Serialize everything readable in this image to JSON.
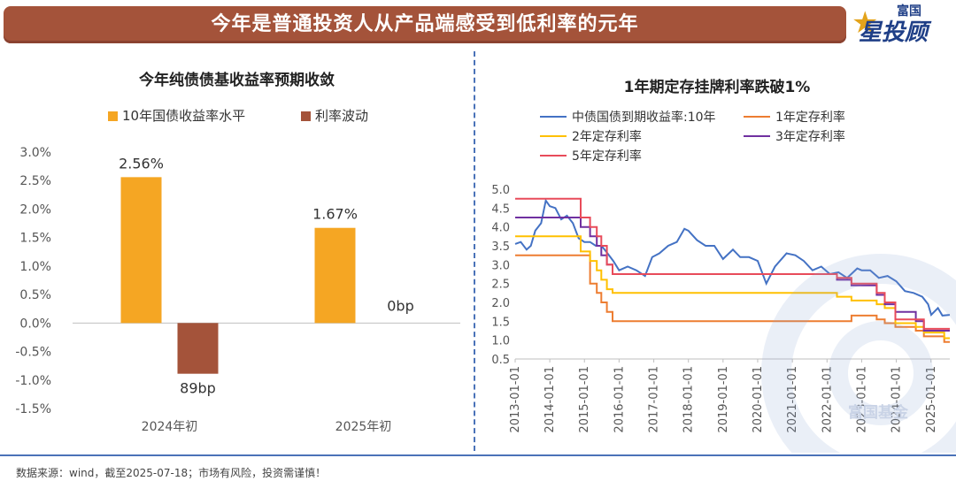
{
  "header": {
    "title": "今年是普通投资人从产品端感受到低利率的元年"
  },
  "logo": {
    "line1": "富国",
    "line2": "星投顾",
    "icon": "star-icon"
  },
  "footer": {
    "source": "数据来源：wind，截至2025-07-18；市场有风险，投资需谨慎！"
  },
  "watermark": {
    "text": "富国基金"
  },
  "chart_data": [
    {
      "type": "bar",
      "title": "今年纯债债基收益率预期收敛",
      "categories": [
        "2024年初",
        "2025年初"
      ],
      "series": [
        {
          "name": "10年国债收益率水平",
          "values": [
            2.56,
            1.67
          ],
          "labels": [
            "2.56%",
            "1.67%"
          ],
          "color": "#f5a623"
        },
        {
          "name": "利率波动",
          "values": [
            -0.89,
            0.0
          ],
          "labels": [
            "89bp",
            "0bp"
          ],
          "color": "#a4533a"
        }
      ],
      "ylim": [
        -1.5,
        3.0
      ],
      "yticks": [
        3.0,
        2.5,
        2.0,
        1.5,
        1.0,
        0.5,
        0.0,
        -0.5,
        -1.0,
        -1.5
      ],
      "ytick_labels": [
        "3.0%",
        "2.5%",
        "2.0%",
        "1.5%",
        "1.0%",
        "0.5%",
        "0.0%",
        "-0.5%",
        "-1.0%",
        "-1.5%"
      ],
      "legend": "top",
      "grid": false
    },
    {
      "type": "line",
      "title": "1年期定存挂牌利率跌破1%",
      "ylim": [
        0.5,
        5.0
      ],
      "yticks": [
        0.5,
        1.0,
        1.5,
        2.0,
        2.5,
        3.0,
        3.5,
        4.0,
        4.5,
        5.0
      ],
      "ytick_labels": [
        "0.5",
        "1.0",
        "1.5",
        "2.0",
        "2.5",
        "3.0",
        "3.5",
        "4.0",
        "4.5",
        "5.0"
      ],
      "xlim": [
        "2013-01-01",
        "2025-07-18"
      ],
      "xticks": [
        "2013-01-01",
        "2014-01-01",
        "2015-01-01",
        "2016-01-01",
        "2017-01-01",
        "2018-01-01",
        "2019-01-01",
        "2020-01-01",
        "2021-01-01",
        "2022-01-01",
        "2023-01-01",
        "2024-01-01",
        "2025-01-01"
      ],
      "legend": "top",
      "grid": false,
      "series": [
        {
          "name": "中债国债到期收益率:10年",
          "color": "#4472c4",
          "step": false,
          "points": [
            [
              "2013-01-01",
              3.55
            ],
            [
              "2013-03-01",
              3.6
            ],
            [
              "2013-05-01",
              3.4
            ],
            [
              "2013-06-15",
              3.5
            ],
            [
              "2013-08-01",
              3.9
            ],
            [
              "2013-10-01",
              4.1
            ],
            [
              "2013-11-20",
              4.7
            ],
            [
              "2014-01-01",
              4.55
            ],
            [
              "2014-03-01",
              4.5
            ],
            [
              "2014-05-01",
              4.2
            ],
            [
              "2014-07-01",
              4.3
            ],
            [
              "2014-09-01",
              4.1
            ],
            [
              "2014-11-01",
              3.7
            ],
            [
              "2015-01-01",
              3.6
            ],
            [
              "2015-03-01",
              3.6
            ],
            [
              "2015-05-01",
              3.5
            ],
            [
              "2015-07-01",
              3.5
            ],
            [
              "2015-09-01",
              3.3
            ],
            [
              "2015-11-01",
              3.1
            ],
            [
              "2016-01-01",
              2.85
            ],
            [
              "2016-04-01",
              2.95
            ],
            [
              "2016-07-01",
              2.85
            ],
            [
              "2016-10-01",
              2.7
            ],
            [
              "2016-12-15",
              3.2
            ],
            [
              "2017-03-01",
              3.3
            ],
            [
              "2017-06-01",
              3.5
            ],
            [
              "2017-09-01",
              3.6
            ],
            [
              "2017-11-20",
              3.95
            ],
            [
              "2018-01-01",
              3.9
            ],
            [
              "2018-04-01",
              3.65
            ],
            [
              "2018-07-01",
              3.5
            ],
            [
              "2018-10-01",
              3.5
            ],
            [
              "2019-01-01",
              3.15
            ],
            [
              "2019-04-15",
              3.4
            ],
            [
              "2019-07-01",
              3.2
            ],
            [
              "2019-10-01",
              3.2
            ],
            [
              "2020-01-01",
              3.1
            ],
            [
              "2020-04-01",
              2.5
            ],
            [
              "2020-07-01",
              2.95
            ],
            [
              "2020-11-01",
              3.3
            ],
            [
              "2021-02-01",
              3.25
            ],
            [
              "2021-05-01",
              3.1
            ],
            [
              "2021-08-01",
              2.85
            ],
            [
              "2021-11-01",
              2.95
            ],
            [
              "2022-02-01",
              2.75
            ],
            [
              "2022-05-01",
              2.8
            ],
            [
              "2022-08-01",
              2.65
            ],
            [
              "2022-11-15",
              2.9
            ],
            [
              "2023-01-01",
              2.85
            ],
            [
              "2023-04-01",
              2.85
            ],
            [
              "2023-07-01",
              2.65
            ],
            [
              "2023-10-01",
              2.7
            ],
            [
              "2024-01-01",
              2.56
            ],
            [
              "2024-04-01",
              2.3
            ],
            [
              "2024-07-01",
              2.25
            ],
            [
              "2024-10-01",
              2.15
            ],
            [
              "2024-12-01",
              1.95
            ],
            [
              "2025-01-03",
              1.67
            ],
            [
              "2025-03-15",
              1.85
            ],
            [
              "2025-05-01",
              1.65
            ],
            [
              "2025-07-18",
              1.67
            ]
          ]
        },
        {
          "name": "1年定存利率",
          "color": "#ed7d31",
          "step": true,
          "points": [
            [
              "2013-01-01",
              3.25
            ],
            [
              "2015-03-01",
              2.5
            ],
            [
              "2015-05-11",
              2.25
            ],
            [
              "2015-06-28",
              2.0
            ],
            [
              "2015-08-26",
              1.75
            ],
            [
              "2015-10-24",
              1.5
            ],
            [
              "2022-09-15",
              1.65
            ],
            [
              "2023-06-08",
              1.55
            ],
            [
              "2023-09-01",
              1.45
            ],
            [
              "2023-12-22",
              1.35
            ],
            [
              "2024-07-25",
              1.25
            ],
            [
              "2024-10-18",
              1.1
            ],
            [
              "2025-05-20",
              0.95
            ],
            [
              "2025-07-18",
              0.95
            ]
          ]
        },
        {
          "name": "2年定存利率",
          "color": "#ffc000",
          "step": true,
          "points": [
            [
              "2013-01-01",
              3.75
            ],
            [
              "2014-11-22",
              3.35
            ],
            [
              "2015-03-01",
              3.1
            ],
            [
              "2015-05-11",
              2.85
            ],
            [
              "2015-06-28",
              2.6
            ],
            [
              "2015-08-26",
              2.35
            ],
            [
              "2015-10-24",
              2.25
            ],
            [
              "2022-04-15",
              2.15
            ],
            [
              "2022-09-15",
              2.05
            ],
            [
              "2023-06-08",
              1.95
            ],
            [
              "2023-09-01",
              1.85
            ],
            [
              "2023-12-22",
              1.45
            ],
            [
              "2024-07-25",
              1.35
            ],
            [
              "2024-10-18",
              1.2
            ],
            [
              "2025-05-20",
              1.05
            ],
            [
              "2025-07-18",
              1.05
            ]
          ]
        },
        {
          "name": "3年定存利率",
          "color": "#7030a0",
          "step": true,
          "points": [
            [
              "2013-01-01",
              4.25
            ],
            [
              "2014-11-22",
              4.0
            ],
            [
              "2015-03-01",
              3.75
            ],
            [
              "2015-05-11",
              3.5
            ],
            [
              "2015-06-28",
              3.25
            ],
            [
              "2015-08-26",
              3.0
            ],
            [
              "2015-10-24",
              2.75
            ],
            [
              "2022-04-15",
              2.6
            ],
            [
              "2022-09-15",
              2.45
            ],
            [
              "2023-06-08",
              2.2
            ],
            [
              "2023-09-01",
              1.95
            ],
            [
              "2023-12-22",
              1.75
            ],
            [
              "2024-07-25",
              1.5
            ],
            [
              "2024-10-18",
              1.25
            ],
            [
              "2025-05-20",
              1.25
            ],
            [
              "2025-07-18",
              1.25
            ]
          ]
        },
        {
          "name": "5年定存利率",
          "color": "#e84b5a",
          "step": true,
          "points": [
            [
              "2013-01-01",
              4.75
            ],
            [
              "2014-11-22",
              4.25
            ],
            [
              "2015-03-01",
              4.0
            ],
            [
              "2015-05-11",
              3.75
            ],
            [
              "2015-06-28",
              3.5
            ],
            [
              "2015-08-26",
              3.0
            ],
            [
              "2015-10-24",
              2.75
            ],
            [
              "2022-04-15",
              2.65
            ],
            [
              "2022-09-15",
              2.5
            ],
            [
              "2023-06-08",
              2.25
            ],
            [
              "2023-09-01",
              2.0
            ],
            [
              "2023-12-22",
              1.55
            ],
            [
              "2024-07-25",
              1.55
            ],
            [
              "2024-10-18",
              1.3
            ],
            [
              "2025-05-20",
              1.3
            ],
            [
              "2025-07-18",
              1.3
            ]
          ]
        }
      ]
    }
  ]
}
